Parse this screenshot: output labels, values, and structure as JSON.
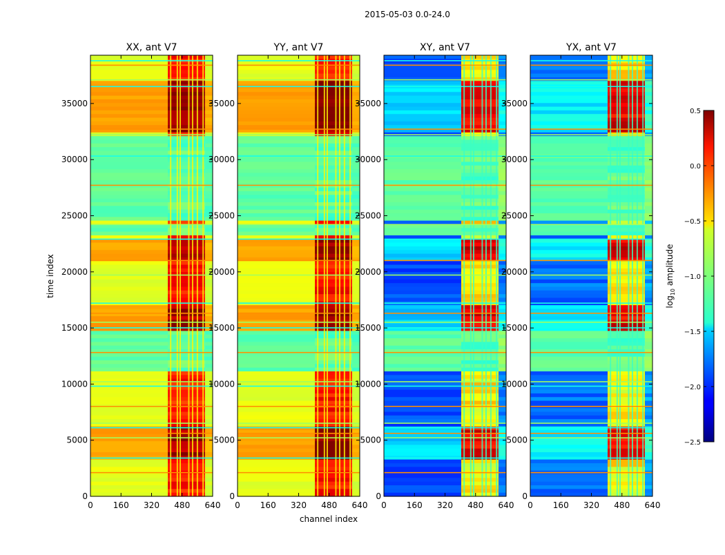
{
  "chart_data": {
    "type": "heatmap",
    "suptitle": "2015-05-03 0.0-24.0",
    "xlabel": "channel index",
    "ylabel": "time index",
    "xlim": [
      0,
      640
    ],
    "ylim": [
      0,
      39300
    ],
    "xticks": [
      "0",
      "160",
      "320",
      "480",
      "640"
    ],
    "yticks": [
      "0",
      "5000",
      "10000",
      "15000",
      "20000",
      "25000",
      "30000",
      "35000"
    ],
    "colorbar": {
      "label": "log10 amplitude",
      "label_main": "log",
      "label_sub": "10",
      "label_tail": " amplitude",
      "min": -2.5,
      "max": 0.5,
      "ticks": [
        "0.5",
        "0.0",
        "−0.5",
        "−1.0",
        "−1.5",
        "−2.0",
        "−2.5"
      ],
      "colormap": "jet"
    },
    "panels": [
      {
        "title": "XX, ant V7",
        "kind": "parallel",
        "base_level": -0.7,
        "band_level": 0.05
      },
      {
        "title": "YY, ant V7",
        "kind": "parallel",
        "base_level": -0.7,
        "band_level": 0.1
      },
      {
        "title": "XY, ant V7",
        "kind": "cross",
        "base_level": -1.9,
        "band_level": -0.6
      },
      {
        "title": "YX, ant V7",
        "kind": "cross",
        "base_level": -1.8,
        "band_level": -0.6
      }
    ],
    "rfi_channel_range": [
      405,
      600
    ],
    "flagged_time_ranges": [
      [
        11000,
        14700
      ],
      [
        23100,
        24100
      ],
      [
        24600,
        32000
      ]
    ],
    "flag_level": -1.1,
    "high_time_ranges": [
      [
        3400,
        6100
      ],
      [
        14700,
        17000
      ],
      [
        21000,
        23000
      ],
      [
        32500,
        37000
      ]
    ],
    "horizontal_lines_time": [
      2100,
      3400,
      5200,
      5600,
      6100,
      6500,
      8000,
      9800,
      10200,
      12800,
      15000,
      15500,
      16300,
      17200,
      19700,
      21000,
      22900,
      24200,
      27700,
      30300,
      32200,
      32700,
      36500,
      37100,
      38400,
      38800
    ]
  }
}
